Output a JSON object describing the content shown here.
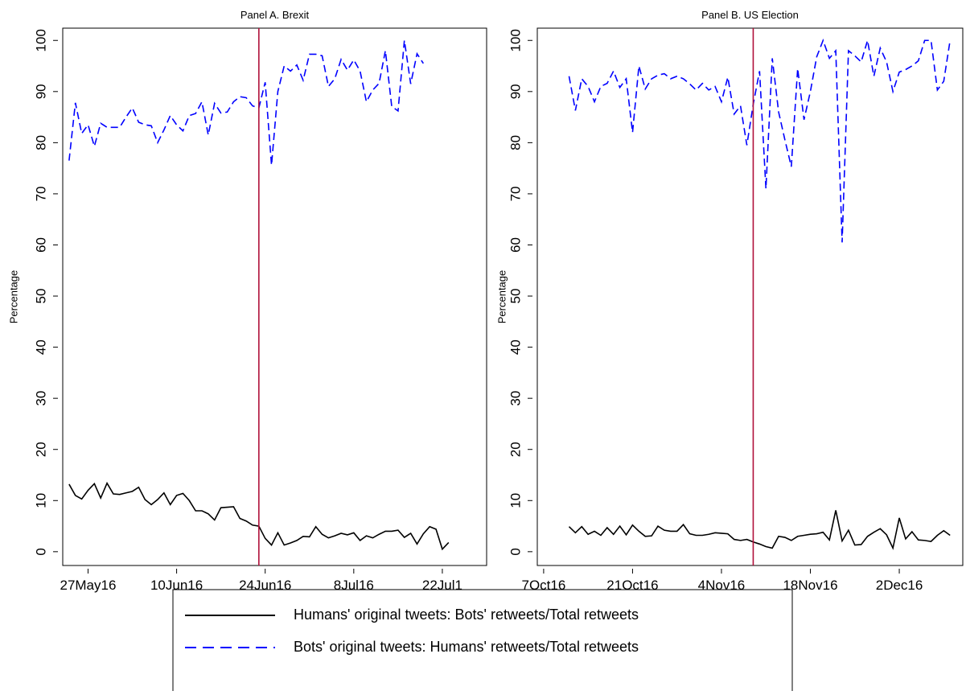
{
  "chart_data": [
    {
      "type": "line",
      "title": "Panel A. Brexit",
      "y_label": "Percentage",
      "x": [
        "2016-05-24",
        "2016-05-25",
        "2016-05-26",
        "2016-05-27",
        "2016-05-28",
        "2016-05-29",
        "2016-05-30",
        "2016-05-31",
        "2016-06-01",
        "2016-06-02",
        "2016-06-03",
        "2016-06-04",
        "2016-06-05",
        "2016-06-06",
        "2016-06-07",
        "2016-06-08",
        "2016-06-09",
        "2016-06-10",
        "2016-06-11",
        "2016-06-12",
        "2016-06-13",
        "2016-06-14",
        "2016-06-15",
        "2016-06-16",
        "2016-06-17",
        "2016-06-18",
        "2016-06-19",
        "2016-06-20",
        "2016-06-21",
        "2016-06-22",
        "2016-06-23",
        "2016-06-24",
        "2016-06-25",
        "2016-06-26",
        "2016-06-27",
        "2016-06-28",
        "2016-06-29",
        "2016-06-30",
        "2016-07-01",
        "2016-07-02",
        "2016-07-03",
        "2016-07-04",
        "2016-07-05",
        "2016-07-06",
        "2016-07-07",
        "2016-07-08",
        "2016-07-09",
        "2016-07-10",
        "2016-07-11",
        "2016-07-12",
        "2016-07-13",
        "2016-07-14",
        "2016-07-15",
        "2016-07-16",
        "2016-07-17",
        "2016-07-18",
        "2016-07-19",
        "2016-07-20",
        "2016-07-21",
        "2016-07-22",
        "2016-07-23"
      ],
      "series": [
        {
          "name": "Humans' original tweets: Bots' retweets/Total retweets",
          "color": "#000000",
          "style": "solid",
          "values": [
            13.2,
            11,
            10.3,
            12,
            13.3,
            10.5,
            13.4,
            11.3,
            11.2,
            11.5,
            11.8,
            12.6,
            10.2,
            9.2,
            10.2,
            11.5,
            9.2,
            11,
            11.4,
            10,
            8,
            8,
            7.4,
            6.2,
            8.6,
            8.7,
            8.8,
            6.5,
            6,
            5.2,
            5,
            2.6,
            1.3,
            3.7,
            1.3,
            1.7,
            2.2,
            3,
            2.9,
            4.9,
            3.4,
            2.7,
            3.1,
            3.6,
            3.3,
            3.7,
            2.2,
            3.1,
            2.7,
            3.4,
            4,
            4,
            4.2,
            2.8,
            3.6,
            1.5,
            3.5,
            4.9,
            4.4,
            0.5,
            1.8
          ]
        },
        {
          "name": "Bots' original tweets: Humans' retweets/Total retweets",
          "color": "#0000ff",
          "style": "dashed",
          "values": [
            76.5,
            87.8,
            81.8,
            83.5,
            79.3,
            83.8,
            83,
            83,
            83,
            85,
            86.8,
            84,
            83.5,
            83.3,
            80,
            82.5,
            85.3,
            83.5,
            82.3,
            85.3,
            85.7,
            88,
            81.5,
            87.7,
            85.8,
            86,
            88,
            89,
            88.8,
            87.2,
            86.8,
            91.8,
            75.6,
            90,
            95,
            94,
            95.2,
            92.2,
            97.3,
            97.3,
            97,
            91,
            92.5,
            96.3,
            94.2,
            96.2,
            94,
            88,
            90.3,
            91.6,
            98,
            87.1,
            86.2,
            100,
            91.5,
            97.4,
            95.5,
            null,
            null,
            null,
            null
          ]
        }
      ],
      "vline": "2016-06-23",
      "vline_color": "#b0103a",
      "xlim": [
        "2016-05-23",
        "2016-07-29"
      ],
      "xticks": [
        {
          "value": "2016-05-27",
          "label": "27May16"
        },
        {
          "value": "2016-06-10",
          "label": "10Jun16"
        },
        {
          "value": "2016-06-24",
          "label": "24Jun16"
        },
        {
          "value": "2016-07-08",
          "label": "8Jul16"
        },
        {
          "value": "2016-07-22",
          "label": "22Jul1"
        }
      ],
      "ylim": [
        -2.7,
        102.4
      ],
      "yticks": [
        0,
        10,
        20,
        30,
        40,
        50,
        60,
        70,
        80,
        90,
        100
      ],
      "grid": false
    },
    {
      "type": "line",
      "title": "Panel B. US Election",
      "y_label": "Percentage",
      "x": [
        "2016-10-11",
        "2016-10-12",
        "2016-10-13",
        "2016-10-14",
        "2016-10-15",
        "2016-10-16",
        "2016-10-17",
        "2016-10-18",
        "2016-10-19",
        "2016-10-20",
        "2016-10-21",
        "2016-10-22",
        "2016-10-23",
        "2016-10-24",
        "2016-10-25",
        "2016-10-26",
        "2016-10-27",
        "2016-10-28",
        "2016-10-29",
        "2016-10-30",
        "2016-10-31",
        "2016-11-01",
        "2016-11-02",
        "2016-11-03",
        "2016-11-04",
        "2016-11-05",
        "2016-11-06",
        "2016-11-07",
        "2016-11-08",
        "2016-11-09",
        "2016-11-10",
        "2016-11-11",
        "2016-11-12",
        "2016-11-13",
        "2016-11-14",
        "2016-11-15",
        "2016-11-16",
        "2016-11-17",
        "2016-11-18",
        "2016-11-19",
        "2016-11-20",
        "2016-11-21",
        "2016-11-22",
        "2016-11-23",
        "2016-11-24",
        "2016-11-25",
        "2016-11-26",
        "2016-11-27",
        "2016-11-28",
        "2016-11-29",
        "2016-11-30",
        "2016-12-01",
        "2016-12-02",
        "2016-12-03",
        "2016-12-04",
        "2016-12-05",
        "2016-12-06",
        "2016-12-07",
        "2016-12-08",
        "2016-12-09",
        "2016-12-10"
      ],
      "series": [
        {
          "color": "#000000",
          "style": "solid",
          "values": [
            4.9,
            3.7,
            4.9,
            3.4,
            4,
            3.2,
            4.7,
            3.4,
            5,
            3.3,
            5.2,
            4,
            3,
            3.1,
            5,
            4.2,
            4,
            4,
            5.3,
            3.5,
            3.2,
            3.2,
            3.4,
            3.7,
            3.6,
            3.5,
            2.4,
            2.2,
            2.4,
            1.9,
            1.5,
            1,
            0.7,
            3,
            2.8,
            2.2,
            3,
            3.2,
            3.4,
            3.5,
            3.8,
            2.3,
            8.1,
            2.1,
            4.2,
            1.3,
            1.4,
            3,
            3.8,
            4.5,
            3.3,
            0.7,
            6.6,
            2.5,
            3.9,
            2.3,
            2.2,
            2,
            3.2,
            4.1,
            3.2
          ]
        },
        {
          "color": "#0000ff",
          "style": "dashed",
          "values": [
            93,
            86.3,
            92.5,
            91,
            88,
            91,
            91.6,
            94,
            90.8,
            92.5,
            82,
            95,
            90.5,
            92.5,
            93.2,
            93.5,
            92.5,
            93,
            92.5,
            91.5,
            90.3,
            91.6,
            90.3,
            91,
            88,
            92.8,
            85.6,
            87.2,
            79.5,
            87.5,
            94,
            71,
            96.5,
            86,
            80.5,
            75.3,
            94.5,
            84.5,
            90,
            96.8,
            100,
            96.5,
            98,
            60.5,
            98,
            97,
            95.8,
            100,
            93,
            98.5,
            95.8,
            90,
            93.8,
            94.3,
            95,
            96,
            100,
            100,
            90.3,
            92,
            100
          ]
        }
      ],
      "vline": "2016-11-09",
      "vline_color": "#b0103a",
      "xlim": [
        "2016-10-06",
        "2016-12-12"
      ],
      "xticks": [
        {
          "value": "2016-10-07",
          "label": "7Oct16"
        },
        {
          "value": "2016-10-21",
          "label": "21Oct16"
        },
        {
          "value": "2016-11-04",
          "label": "4Nov16"
        },
        {
          "value": "2016-11-18",
          "label": "18Nov16"
        },
        {
          "value": "2016-12-02",
          "label": "2Dec16"
        }
      ],
      "ylim": [
        -2.7,
        102.4
      ],
      "yticks": [
        0,
        10,
        20,
        30,
        40,
        50,
        60,
        70,
        80,
        90,
        100
      ],
      "grid": false
    }
  ]
}
